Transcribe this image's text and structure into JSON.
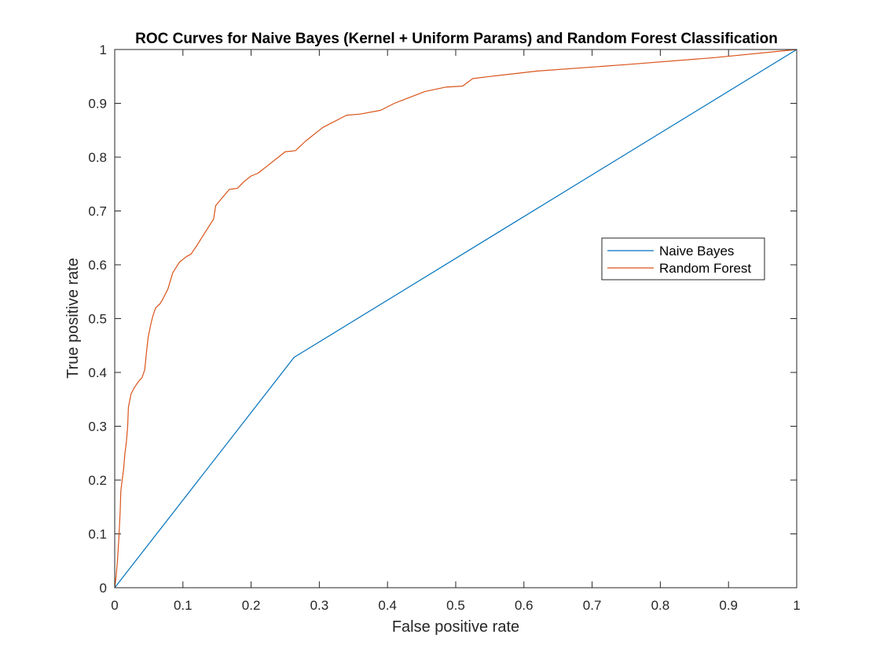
{
  "chart_data": {
    "type": "line",
    "title": "ROC Curves for Naive Bayes (Kernel + Uniform Params) and Random Forest Classification",
    "xlabel": "False positive rate",
    "ylabel": "True positive rate",
    "xlim": [
      0,
      1
    ],
    "ylim": [
      0,
      1
    ],
    "xticks": [
      "0",
      "0.1",
      "0.2",
      "0.3",
      "0.4",
      "0.5",
      "0.6",
      "0.7",
      "0.8",
      "0.9",
      "1"
    ],
    "yticks": [
      "0",
      "0.1",
      "0.2",
      "0.3",
      "0.4",
      "0.5",
      "0.6",
      "0.7",
      "0.8",
      "0.9",
      "1"
    ],
    "grid": false,
    "legend_position": "right",
    "series": [
      {
        "name": "Naive Bayes",
        "color": "#0072BD",
        "points": [
          [
            0,
            0
          ],
          [
            0.263,
            0.428
          ],
          [
            1,
            1
          ]
        ]
      },
      {
        "name": "Random Forest",
        "color": "#D95319",
        "points": [
          [
            0,
            0
          ],
          [
            0.002,
            0.02
          ],
          [
            0.004,
            0.05
          ],
          [
            0.006,
            0.09
          ],
          [
            0.008,
            0.14
          ],
          [
            0.009,
            0.18
          ],
          [
            0.011,
            0.2
          ],
          [
            0.013,
            0.22
          ],
          [
            0.015,
            0.25
          ],
          [
            0.017,
            0.27
          ],
          [
            0.019,
            0.3
          ],
          [
            0.02,
            0.335
          ],
          [
            0.024,
            0.36
          ],
          [
            0.028,
            0.37
          ],
          [
            0.032,
            0.378
          ],
          [
            0.036,
            0.385
          ],
          [
            0.04,
            0.39
          ],
          [
            0.044,
            0.405
          ],
          [
            0.046,
            0.43
          ],
          [
            0.049,
            0.465
          ],
          [
            0.053,
            0.49
          ],
          [
            0.056,
            0.505
          ],
          [
            0.06,
            0.52
          ],
          [
            0.066,
            0.527
          ],
          [
            0.07,
            0.535
          ],
          [
            0.078,
            0.555
          ],
          [
            0.085,
            0.585
          ],
          [
            0.095,
            0.605
          ],
          [
            0.105,
            0.615
          ],
          [
            0.112,
            0.62
          ],
          [
            0.12,
            0.635
          ],
          [
            0.13,
            0.655
          ],
          [
            0.14,
            0.675
          ],
          [
            0.145,
            0.685
          ],
          [
            0.148,
            0.71
          ],
          [
            0.158,
            0.725
          ],
          [
            0.168,
            0.74
          ],
          [
            0.18,
            0.742
          ],
          [
            0.19,
            0.755
          ],
          [
            0.2,
            0.765
          ],
          [
            0.21,
            0.77
          ],
          [
            0.225,
            0.785
          ],
          [
            0.24,
            0.8
          ],
          [
            0.25,
            0.81
          ],
          [
            0.265,
            0.812
          ],
          [
            0.28,
            0.83
          ],
          [
            0.305,
            0.855
          ],
          [
            0.34,
            0.878
          ],
          [
            0.36,
            0.88
          ],
          [
            0.39,
            0.887
          ],
          [
            0.41,
            0.9
          ],
          [
            0.455,
            0.922
          ],
          [
            0.485,
            0.93
          ],
          [
            0.51,
            0.932
          ],
          [
            0.525,
            0.946
          ],
          [
            0.55,
            0.95
          ],
          [
            0.62,
            0.96
          ],
          [
            0.75,
            0.972
          ],
          [
            0.88,
            0.985
          ],
          [
            1,
            1
          ]
        ]
      }
    ]
  }
}
